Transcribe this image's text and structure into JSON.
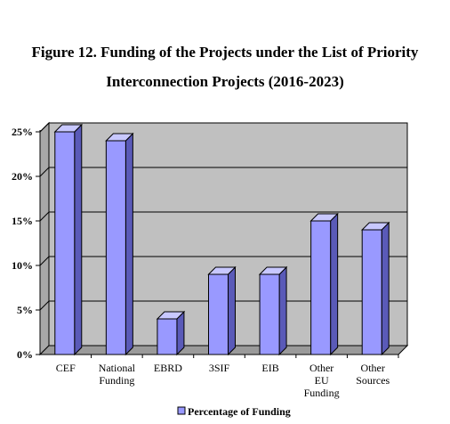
{
  "chart_data": {
    "type": "bar",
    "title_line1": "Figure 12. Funding of the Projects under the List of Priority",
    "title_line2": "Interconnection Projects (2016-2023)",
    "categories": [
      [
        "CEF"
      ],
      [
        "National",
        "Funding"
      ],
      [
        "EBRD"
      ],
      [
        "3SIF"
      ],
      [
        "EIB"
      ],
      [
        "Other",
        "EU",
        "Funding"
      ],
      [
        "Other",
        "Sources"
      ]
    ],
    "series": [
      {
        "name": "Percentage of Funding",
        "values": [
          25,
          24,
          4,
          9,
          9,
          15,
          14
        ]
      }
    ],
    "yticks": [
      "0%",
      "5%",
      "10%",
      "15%",
      "20%",
      "25%"
    ],
    "ylim": [
      0,
      25
    ],
    "grid": true,
    "legend_position": "bottom",
    "colors": {
      "bar_front": "#9999ff",
      "bar_side": "#5a5ab8",
      "bar_top": "#c8c8ff",
      "plot_back": "#c0c0c0",
      "plot_floor": "#9a9a9a",
      "plot_wall": "#a8a8a8",
      "outline": "#000000"
    }
  }
}
